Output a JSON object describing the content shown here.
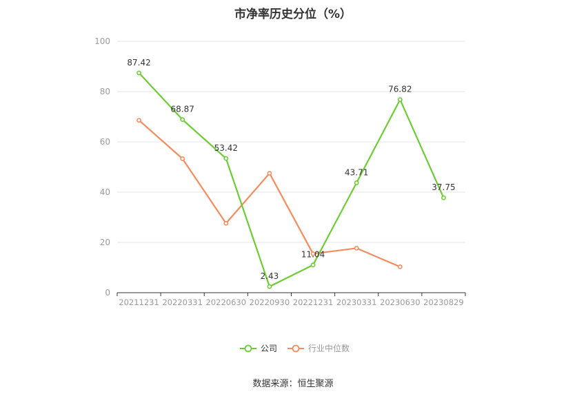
{
  "chart_data": {
    "type": "line",
    "title": "市净率历史分位（%）",
    "categories": [
      "20211231",
      "20220331",
      "20220630",
      "20220930",
      "20221231",
      "20230331",
      "20230630",
      "20230829"
    ],
    "ylim": [
      0,
      100
    ],
    "yticks": [
      0,
      20,
      40,
      60,
      80,
      100
    ],
    "grid": true,
    "legend_position": "bottom",
    "series": [
      {
        "name": "公司",
        "color": "#6dcb35",
        "values": [
          87.42,
          68.87,
          53.42,
          2.43,
          11.04,
          43.71,
          76.82,
          37.75
        ],
        "labels": [
          "87.42",
          "68.87",
          "53.42",
          "2.43",
          "11.04",
          "43.71",
          "76.82",
          "37.75"
        ]
      },
      {
        "name": "行业中位数",
        "color": "#f28c5e",
        "values": [
          68.6,
          53.3,
          27.6,
          47.5,
          15.5,
          17.7,
          10.3,
          null
        ]
      }
    ]
  },
  "source": "数据来源：恒生聚源"
}
